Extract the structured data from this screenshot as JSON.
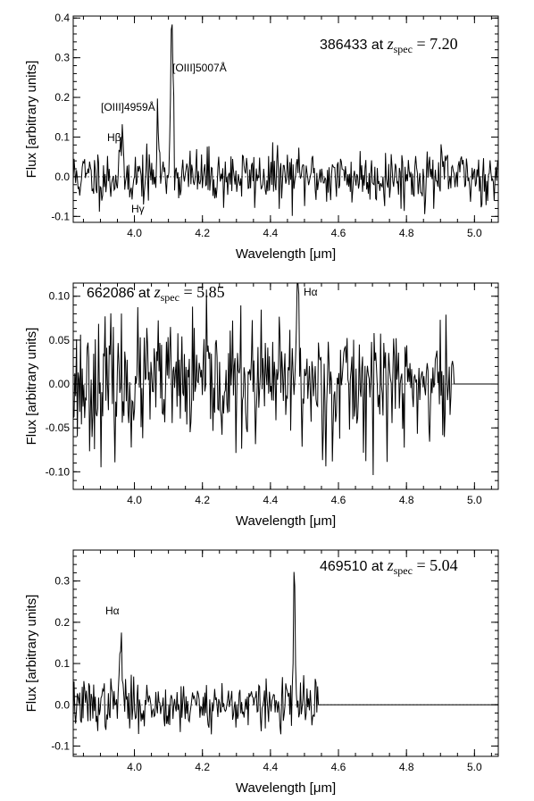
{
  "chart_data": [
    {
      "type": "line",
      "xlabel": "Wavelength [μm]",
      "ylabel": "Flux [arbitrary units]",
      "xlim": [
        3.82,
        5.07
      ],
      "ylim": [
        -0.115,
        0.405
      ],
      "xticks": [
        4.0,
        4.2,
        4.4,
        4.6,
        4.8,
        5.0
      ],
      "xtick_labels": [
        "4.0",
        "4.2",
        "4.4",
        "4.6",
        "4.8",
        "5.0"
      ],
      "yticks": [
        -0.1,
        0.0,
        0.1,
        0.2,
        0.3,
        0.4
      ],
      "ytick_labels": [
        "-0.1",
        "0.0",
        "0.1",
        "0.2",
        "0.3",
        "0.4"
      ],
      "object_id": "386433 at ",
      "z_symbol": "z",
      "z_sub": "spec",
      "z_value": " = 7.20",
      "flux_end": 5.07,
      "noise_sigma": 0.035,
      "seed": 11,
      "lines": [
        {
          "label": "[OIII]5007Å",
          "x": 4.11,
          "peak": 0.4,
          "width": 0.004
        },
        {
          "label": "[OIII]4959Å",
          "x": 4.07,
          "peak": 0.14,
          "width": 0.003
        },
        {
          "label": "Hβ",
          "x": 3.96,
          "peak": 0.09,
          "width": 0.004
        },
        {
          "label": "Hγ",
          "x": 3.96,
          "peak": -0.1,
          "width": 0.0
        }
      ]
    },
    {
      "type": "line",
      "xlabel": "Wavelength [μm]",
      "ylabel": "Flux [arbitrary units]",
      "xlim": [
        3.82,
        5.07
      ],
      "ylim": [
        -0.12,
        0.115
      ],
      "xticks": [
        4.0,
        4.2,
        4.4,
        4.6,
        4.8,
        5.0
      ],
      "xtick_labels": [
        "4.0",
        "4.2",
        "4.4",
        "4.6",
        "4.8",
        "5.0"
      ],
      "yticks": [
        -0.1,
        -0.05,
        0.0,
        0.05,
        0.1
      ],
      "ytick_labels": [
        "-0.10",
        "-0.05",
        "0.00",
        "0.05",
        "0.10"
      ],
      "object_id": "662086 at ",
      "z_symbol": "z",
      "z_sub": "spec",
      "z_value": " = 5.85",
      "flux_end": 4.94,
      "noise_sigma": 0.035,
      "seed": 23,
      "lines": [
        {
          "label": "Hα",
          "x": 4.48,
          "peak": 0.11,
          "width": 0.004
        }
      ]
    },
    {
      "type": "line",
      "xlabel": "Wavelength [μm]",
      "ylabel": "Flux [arbitrary units]",
      "xlim": [
        3.82,
        5.07
      ],
      "ylim": [
        -0.125,
        0.375
      ],
      "xticks": [
        4.0,
        4.2,
        4.4,
        4.6,
        4.8,
        5.0
      ],
      "xtick_labels": [
        "4.0",
        "4.2",
        "4.4",
        "4.6",
        "4.8",
        "5.0"
      ],
      "yticks": [
        -0.1,
        0.0,
        0.1,
        0.2,
        0.3
      ],
      "ytick_labels": [
        "-0.1",
        "0.0",
        "0.1",
        "0.2",
        "0.3"
      ],
      "object_id": "469510 at ",
      "z_symbol": "z",
      "z_sub": "spec",
      "z_value": " = 5.04",
      "flux_end": 4.54,
      "noise_sigma": 0.03,
      "seed": 37,
      "lines": [
        {
          "label": "Hα",
          "x": 3.96,
          "peak": 0.15,
          "width": 0.004
        },
        {
          "label": "",
          "x": 4.47,
          "peak": 0.37,
          "width": 0.002
        }
      ]
    }
  ]
}
